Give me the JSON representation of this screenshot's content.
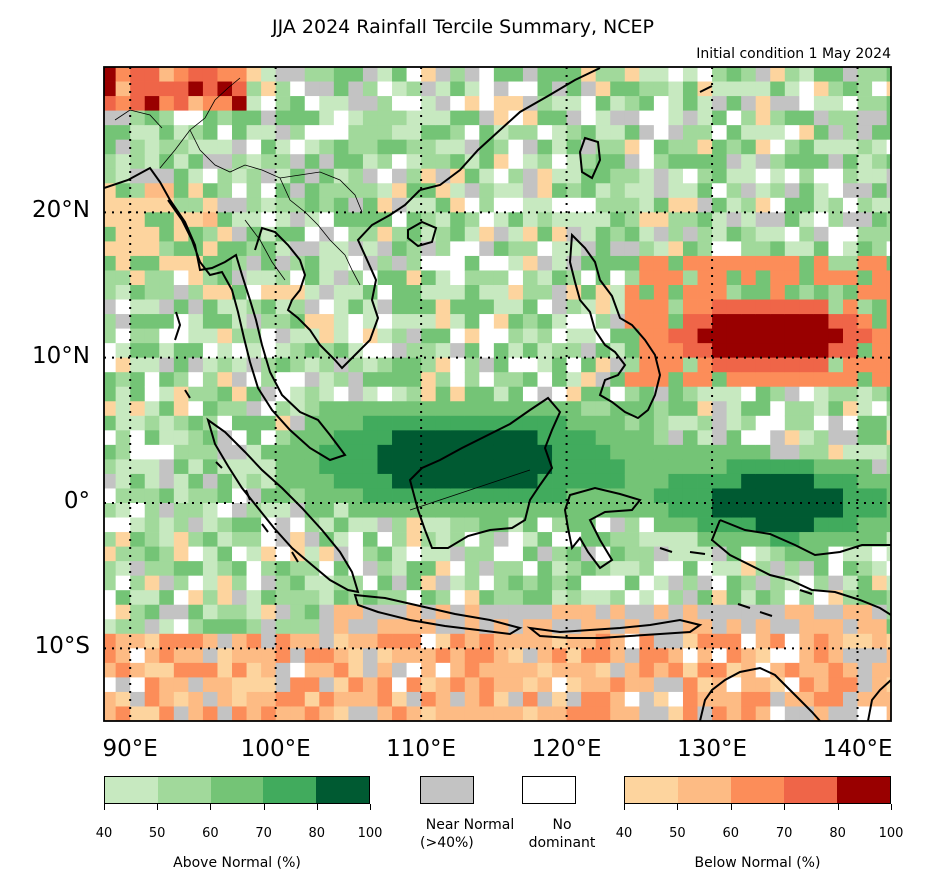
{
  "title": "JJA 2024 Rainfall Tercile Summary, NCEP",
  "subtitle": "Initial condition 1 May 2024",
  "lat_labels": [
    "20°N",
    "10°N",
    "0°",
    "10°S"
  ],
  "lon_labels": [
    "90°E",
    "100°E",
    "110°E",
    "120°E",
    "130°E",
    "140°E"
  ],
  "colors": {
    "above": [
      "#c7e9c0",
      "#a1d99b",
      "#74c476",
      "#41ab5d",
      "#005a32"
    ],
    "below": [
      "#fdd49e",
      "#fdbb84",
      "#fc8d59",
      "#ef6548",
      "#990000"
    ],
    "near_normal": "#c3c3c3",
    "no_dominant": "#ffffff"
  },
  "legend": {
    "above_title": "Above Normal (%)",
    "below_title": "Below Normal (%)",
    "ticks": [
      "40",
      "50",
      "60",
      "70",
      "80",
      "100"
    ],
    "near_normal_line1": "Near Normal",
    "near_normal_line2": "(>40%)",
    "no_dominant_line1": "No",
    "no_dominant_line2": "dominant"
  }
}
